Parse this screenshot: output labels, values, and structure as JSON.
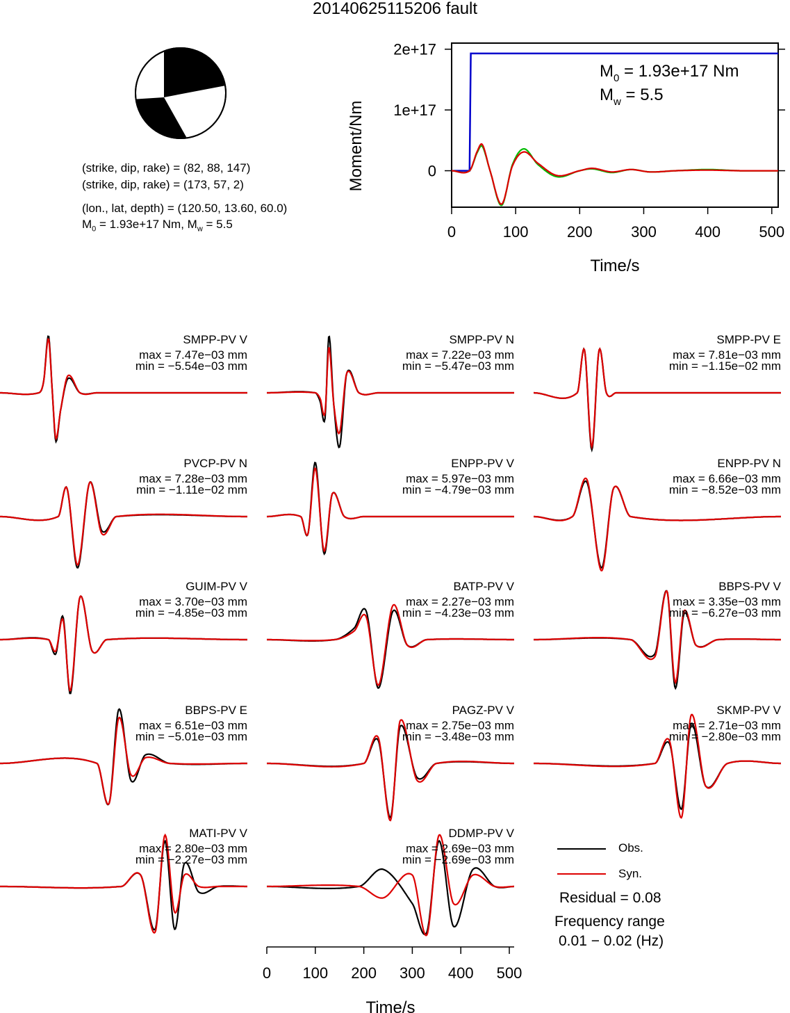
{
  "title": "20140625115206 fault",
  "mechanism": {
    "plane1": "(strike, dip, rake) = (82, 88, 147)",
    "plane2": "(strike, dip, rake) = (173, 57, 2)",
    "location": "(lon., lat, depth) = (120.50, 13.60, 60.0)",
    "moment_prefix": "M",
    "moment_sub": "0",
    "moment_mid": " = 1.93e+17 Nm, M",
    "mw_sub": "w",
    "mw_suffix": " = 5.5"
  },
  "moment_panel": {
    "ylabel": "Moment/Nm",
    "xlabel": "Time/s",
    "yticks": [
      "0",
      "1e+17",
      "2e+17"
    ],
    "xticks": [
      "0",
      "100",
      "200",
      "300",
      "400",
      "500"
    ],
    "m0_label_prefix": "M",
    "m0_label_sub": "0",
    "m0_label_value": " = 1.93e+17 Nm",
    "mw_label_prefix": "M",
    "mw_label_sub": "w",
    "mw_label_value": " = 5.5"
  },
  "waveform_axis": {
    "xlabel": "Time/s",
    "xticks": [
      "0",
      "100",
      "200",
      "300",
      "400",
      "500"
    ]
  },
  "legend": {
    "obs": "Obs.",
    "syn": "Syn.",
    "residual": "Residual = 0.08",
    "freq_title": "Frequency range",
    "freq_value": "0.01 − 0.02 (Hz)"
  },
  "colors": {
    "observed": "#000000",
    "synthetic": "#dd0000",
    "cumulative_moment": "#0000cc",
    "moment_rate_green": "#00bb00"
  },
  "chart_data": [
    {
      "type": "line",
      "title": "",
      "xlabel": "Time/s",
      "ylabel": "Moment/Nm",
      "xlim": [
        0,
        510
      ],
      "ylim": [
        -6e+16,
        2.1e+17
      ],
      "series": [
        {
          "x": [
            0,
            28,
            30,
            510
          ],
          "y": [
            0,
            0,
            1.93e+17,
            1.93e+17
          ]
        },
        {
          "x": [
            0,
            28,
            40,
            48,
            60,
            78,
            95,
            113,
            135,
            165,
            200,
            220,
            250,
            280,
            310,
            350,
            400,
            450,
            510
          ],
          "y": [
            0,
            0,
            3e+16,
            4e+16,
            0,
            -5.7e+16,
            1e+16,
            3.6e+16,
            1e+16,
            -1e+16,
            0,
            3000000000000000.0,
            -3000000000000000.0,
            2000000000000000.0,
            -2000000000000000.0,
            0,
            2000000000000000.0,
            0,
            0
          ]
        },
        {
          "x": [
            0,
            28,
            40,
            48,
            60,
            78,
            95,
            113,
            135,
            165,
            200,
            220,
            250,
            280,
            310,
            350,
            400,
            450,
            510
          ],
          "y": [
            0,
            0,
            3.2e+16,
            4.3e+16,
            0,
            -5.5e+16,
            8000000000000000.0,
            3.1e+16,
            1.2e+16,
            -8000000000000000.0,
            0,
            4000000000000000.0,
            -2000000000000000.0,
            2000000000000000.0,
            -2000000000000000.0,
            0,
            1000000000000000.0,
            0,
            0
          ]
        }
      ]
    },
    {
      "type": "line",
      "xlabel": "Time/s",
      "xlim": [
        0,
        510
      ],
      "traces": [
        {
          "station": "SMPP-PV V",
          "max": "max = 7.47e−03 mm",
          "min": "min = −5.54e−03 mm",
          "obs": {
            "t": [
              0,
              80,
              90,
              100,
              108,
              115,
              125,
              140,
              165,
              200,
              510
            ],
            "a": [
              0,
              0,
              0.2,
              1,
              0,
              -0.85,
              -0.3,
              0.25,
              0,
              0,
              0
            ]
          },
          "syn": {
            "t": [
              0,
              80,
              90,
              100,
              108,
              115,
              125,
              140,
              165,
              200,
              510
            ],
            "a": [
              0,
              0,
              0.2,
              0.95,
              0,
              -0.8,
              -0.3,
              0.3,
              0,
              0,
              0
            ]
          }
        },
        {
          "station": "SMPP-PV N",
          "max": "max = 7.22e−03 mm",
          "min": "min = −5.47e−03 mm",
          "obs": {
            "t": [
              0,
              100,
              110,
              120,
              128,
              138,
              150,
              165,
              190,
              230,
              510
            ],
            "a": [
              0,
              0,
              -0.15,
              -0.45,
              1,
              -0.2,
              -0.95,
              0.35,
              0,
              0,
              0
            ]
          },
          "syn": {
            "t": [
              0,
              100,
              110,
              120,
              128,
              138,
              150,
              165,
              190,
              230,
              510
            ],
            "a": [
              0,
              0,
              -0.1,
              -0.35,
              0.8,
              -0.2,
              -0.7,
              0.35,
              0,
              0,
              0
            ]
          }
        },
        {
          "station": "SMPP-PV E",
          "max": "max = 7.81e−03 mm",
          "min": "min = −1.15e−02 mm",
          "obs": {
            "t": [
              0,
              90,
              105,
              120,
              135,
              150,
              170,
              200,
              510
            ],
            "a": [
              0,
              0,
              0.75,
              -1,
              0.75,
              0,
              0,
              0,
              0
            ]
          },
          "syn": {
            "t": [
              0,
              90,
              105,
              120,
              135,
              150,
              170,
              200,
              510
            ],
            "a": [
              0,
              0,
              0.75,
              -0.95,
              0.75,
              0,
              0,
              0,
              0
            ]
          }
        },
        {
          "station": "PVCP-PV N",
          "max": "max = 7.28e−03 mm",
          "min": "min = −1.11e−02 mm",
          "obs": {
            "t": [
              0,
              120,
              138,
              160,
              185,
              210,
              240,
              510
            ],
            "a": [
              0,
              0,
              0.5,
              -0.9,
              0.6,
              -0.25,
              0,
              0
            ]
          },
          "syn": {
            "t": [
              0,
              120,
              138,
              160,
              185,
              210,
              240,
              510
            ],
            "a": [
              0,
              0,
              0.5,
              -0.85,
              0.6,
              -0.3,
              0,
              0
            ]
          }
        },
        {
          "station": "ENPP-PV V",
          "max": "max = 5.97e−03 mm",
          "min": "min = −4.79e−03 mm",
          "obs": {
            "t": [
              0,
              70,
              85,
              100,
              118,
              135,
              160,
              200,
              510
            ],
            "a": [
              0,
              0,
              -0.3,
              0.95,
              -0.65,
              0.4,
              0,
              0,
              0
            ]
          },
          "syn": {
            "t": [
              0,
              70,
              85,
              100,
              118,
              135,
              160,
              200,
              510
            ],
            "a": [
              0,
              0,
              -0.3,
              0.85,
              -0.6,
              0.4,
              0,
              0,
              0
            ]
          }
        },
        {
          "station": "ENPP-PV N",
          "max": "max = 6.66e−03 mm",
          "min": "min = −8.52e−03 mm",
          "obs": {
            "t": [
              0,
              80,
              110,
              140,
              165,
              200,
              510
            ],
            "a": [
              0,
              0,
              0.6,
              -0.9,
              0.5,
              0,
              0
            ]
          },
          "syn": {
            "t": [
              0,
              80,
              110,
              140,
              165,
              200,
              510
            ],
            "a": [
              0,
              0,
              0.65,
              -0.95,
              0.5,
              0,
              0
            ]
          }
        },
        {
          "station": "GUIM-PV V",
          "max": "max = 3.70e−03 mm",
          "min": "min = −4.85e−03 mm",
          "obs": {
            "t": [
              0,
              100,
              115,
              130,
              145,
              165,
              190,
              220,
              510
            ],
            "a": [
              0,
              0,
              -0.25,
              0.4,
              -0.95,
              0.75,
              -0.2,
              0,
              0
            ]
          },
          "syn": {
            "t": [
              0,
              100,
              115,
              130,
              145,
              165,
              190,
              220,
              510
            ],
            "a": [
              0,
              0,
              -0.2,
              0.35,
              -0.9,
              0.75,
              -0.2,
              0,
              0
            ]
          }
        },
        {
          "station": "BATP-PV V",
          "max": "max = 2.27e−03 mm",
          "min": "min = −4.23e−03 mm",
          "obs": {
            "t": [
              0,
              140,
              180,
              205,
              230,
              260,
              290,
              330,
              510
            ],
            "a": [
              0,
              0,
              0.2,
              0.5,
              -0.85,
              0.5,
              -0.1,
              0,
              0
            ]
          },
          "syn": {
            "t": [
              0,
              140,
              180,
              205,
              230,
              260,
              290,
              330,
              510
            ],
            "a": [
              0,
              0,
              0.15,
              0.4,
              -0.8,
              0.6,
              -0.1,
              0,
              0
            ]
          }
        },
        {
          "station": "BBPS-PV V",
          "max": "max = 3.35e−03 mm",
          "min": "min = −6.27e−03 mm",
          "obs": {
            "t": [
              0,
              200,
              250,
              275,
              292,
              310,
              335,
              380,
              510
            ],
            "a": [
              0,
              0,
              -0.25,
              0.85,
              -0.85,
              0.45,
              -0.1,
              0,
              0
            ]
          },
          "syn": {
            "t": [
              0,
              200,
              250,
              275,
              292,
              310,
              335,
              380,
              510
            ],
            "a": [
              0,
              0,
              -0.3,
              0.85,
              -0.75,
              0.5,
              -0.1,
              0,
              0
            ]
          }
        },
        {
          "station": "BBPS-PV E",
          "max": "max = 6.51e−03 mm",
          "min": "min = −5.01e−03 mm",
          "obs": {
            "t": [
              0,
              200,
              225,
              245,
              270,
              300,
              350,
              510
            ],
            "a": [
              0,
              0,
              -0.7,
              0.95,
              -0.3,
              0.15,
              0,
              0
            ]
          },
          "syn": {
            "t": [
              0,
              200,
              225,
              245,
              270,
              300,
              350,
              510
            ],
            "a": [
              0,
              0,
              -0.7,
              0.8,
              -0.2,
              0.1,
              0,
              0
            ]
          }
        },
        {
          "station": "PAGZ-PV V",
          "max": "max = 2.75e−03 mm",
          "min": "min = −3.48e−03 mm",
          "obs": {
            "t": [
              0,
              200,
              230,
              255,
              275,
              310,
              350,
              510
            ],
            "a": [
              0,
              0,
              0.4,
              -0.95,
              0.65,
              -0.25,
              0,
              0
            ]
          },
          "syn": {
            "t": [
              0,
              200,
              230,
              255,
              275,
              310,
              350,
              510
            ],
            "a": [
              0,
              0,
              0.45,
              -1,
              0.75,
              -0.3,
              0,
              0
            ]
          }
        },
        {
          "station": "SKMP-PV V",
          "max": "max = 2.71e−03 mm",
          "min": "min = −2.80e−03 mm",
          "obs": {
            "t": [
              0,
              250,
              280,
              305,
              325,
              355,
              400,
              510
            ],
            "a": [
              0,
              0,
              0.35,
              -0.8,
              0.7,
              -0.4,
              0,
              0
            ]
          },
          "syn": {
            "t": [
              0,
              250,
              280,
              305,
              325,
              355,
              400,
              510
            ],
            "a": [
              0,
              0,
              0.4,
              -0.95,
              0.85,
              -0.4,
              0,
              0
            ]
          }
        },
        {
          "station": "MATI-PV V",
          "max": "max = 2.80e−03 mm",
          "min": "min = −2.27e−03 mm",
          "obs": {
            "t": [
              0,
              250,
              290,
              320,
              340,
              360,
              380,
              410,
              450,
              510
            ],
            "a": [
              0,
              0,
              0.2,
              -0.75,
              0.8,
              -0.75,
              0.4,
              -0.1,
              0,
              0
            ]
          },
          "syn": {
            "t": [
              0,
              250,
              290,
              320,
              340,
              360,
              380,
              410,
              450,
              510
            ],
            "a": [
              0,
              0,
              0.2,
              -0.8,
              0.9,
              -0.45,
              0.2,
              0,
              0,
              0
            ]
          }
        },
        {
          "station": "DDMP-PV V",
          "max": "max = 2.69e−03 mm",
          "min": "min = −2.69e−03 mm",
          "obs": {
            "t": [
              0,
              190,
              240,
              300,
              330,
              355,
              385,
              425,
              470,
              510
            ],
            "a": [
              0,
              0,
              0.3,
              -0.3,
              -0.8,
              0.8,
              -0.7,
              0.3,
              0,
              0
            ]
          },
          "syn": {
            "t": [
              0,
              190,
              240,
              300,
              330,
              355,
              385,
              425,
              470,
              510
            ],
            "a": [
              0,
              0,
              -0.2,
              0.2,
              -0.85,
              0.9,
              -0.3,
              0.2,
              0,
              0
            ]
          }
        }
      ]
    }
  ]
}
